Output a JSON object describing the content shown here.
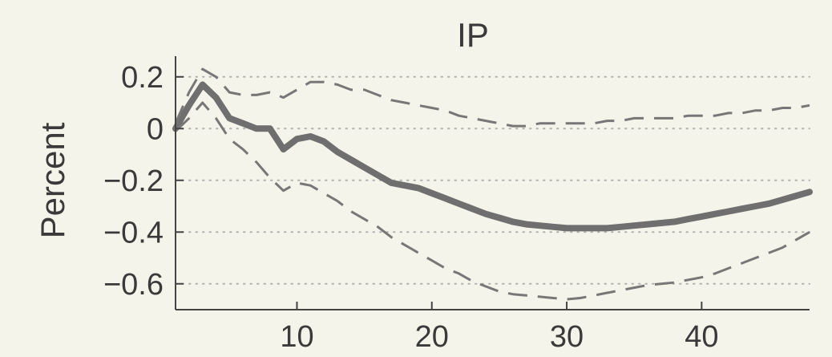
{
  "chart_data": {
    "type": "line",
    "title": "IP",
    "xlabel": "",
    "ylabel": "Percent",
    "xlim": [
      1,
      48
    ],
    "ylim": [
      -0.7,
      0.28
    ],
    "grid": true,
    "x_ticks": [
      10,
      20,
      30,
      40
    ],
    "x_tick_labels": [
      "10",
      "20",
      "30",
      "40"
    ],
    "y_ticks": [
      0.2,
      0,
      -0.2,
      -0.4,
      -0.6
    ],
    "y_tick_labels": [
      "0.2",
      "0",
      "−0.2",
      "−0.4",
      "−0.6"
    ],
    "colors": {
      "point_estimate": "#6f6f6f",
      "bands": "#777777",
      "grid": "#b0b0b0",
      "axis": "#444444"
    },
    "series": [
      {
        "role": "point_estimate",
        "style": "solid-thick",
        "x": [
          1,
          2,
          3,
          4,
          5,
          6,
          7,
          8,
          9,
          10,
          11,
          12,
          13,
          14,
          15,
          16,
          17,
          18,
          19,
          20,
          21,
          22,
          23,
          24,
          25,
          26,
          27,
          28,
          29,
          30,
          31,
          32,
          33,
          34,
          35,
          36,
          37,
          38,
          39,
          40,
          41,
          42,
          43,
          44,
          45,
          46,
          47,
          48
        ],
        "y": [
          0.0,
          0.09,
          0.17,
          0.12,
          0.04,
          0.02,
          0.0,
          0.0,
          -0.08,
          -0.04,
          -0.03,
          -0.05,
          -0.09,
          -0.12,
          -0.15,
          -0.18,
          -0.21,
          -0.22,
          -0.23,
          -0.25,
          -0.27,
          -0.29,
          -0.31,
          -0.33,
          -0.345,
          -0.36,
          -0.37,
          -0.375,
          -0.38,
          -0.385,
          -0.385,
          -0.385,
          -0.385,
          -0.38,
          -0.375,
          -0.37,
          -0.365,
          -0.36,
          -0.35,
          -0.34,
          -0.33,
          -0.32,
          -0.31,
          -0.3,
          -0.29,
          -0.275,
          -0.26,
          -0.245
        ]
      },
      {
        "role": "upper_band",
        "style": "dashed",
        "x": [
          1,
          2,
          3,
          4,
          5,
          6,
          7,
          8,
          9,
          10,
          11,
          12,
          13,
          14,
          15,
          16,
          17,
          18,
          19,
          20,
          21,
          22,
          23,
          24,
          25,
          26,
          27,
          28,
          29,
          30,
          31,
          32,
          33,
          34,
          35,
          36,
          37,
          38,
          39,
          40,
          41,
          42,
          43,
          44,
          45,
          46,
          47,
          48
        ],
        "y": [
          0.02,
          0.14,
          0.23,
          0.2,
          0.14,
          0.13,
          0.13,
          0.14,
          0.12,
          0.15,
          0.18,
          0.18,
          0.17,
          0.15,
          0.15,
          0.13,
          0.11,
          0.1,
          0.09,
          0.08,
          0.07,
          0.05,
          0.04,
          0.03,
          0.02,
          0.01,
          0.01,
          0.02,
          0.02,
          0.02,
          0.02,
          0.02,
          0.03,
          0.03,
          0.04,
          0.04,
          0.04,
          0.04,
          0.05,
          0.05,
          0.05,
          0.06,
          0.06,
          0.07,
          0.07,
          0.08,
          0.08,
          0.09
        ]
      },
      {
        "role": "lower_band",
        "style": "dashed",
        "x": [
          1,
          2,
          3,
          4,
          5,
          6,
          7,
          8,
          9,
          10,
          11,
          12,
          13,
          14,
          15,
          16,
          17,
          18,
          19,
          20,
          21,
          22,
          23,
          24,
          25,
          26,
          27,
          28,
          29,
          30,
          31,
          32,
          33,
          34,
          35,
          36,
          37,
          38,
          39,
          40,
          41,
          42,
          43,
          44,
          45,
          46,
          47,
          48
        ],
        "y": [
          -0.01,
          0.04,
          0.1,
          0.04,
          -0.04,
          -0.08,
          -0.13,
          -0.19,
          -0.24,
          -0.21,
          -0.22,
          -0.25,
          -0.28,
          -0.32,
          -0.35,
          -0.38,
          -0.42,
          -0.45,
          -0.48,
          -0.51,
          -0.54,
          -0.56,
          -0.59,
          -0.61,
          -0.63,
          -0.64,
          -0.645,
          -0.65,
          -0.655,
          -0.66,
          -0.655,
          -0.645,
          -0.635,
          -0.625,
          -0.615,
          -0.605,
          -0.6,
          -0.595,
          -0.585,
          -0.575,
          -0.56,
          -0.54,
          -0.52,
          -0.5,
          -0.48,
          -0.46,
          -0.43,
          -0.4
        ]
      }
    ]
  }
}
